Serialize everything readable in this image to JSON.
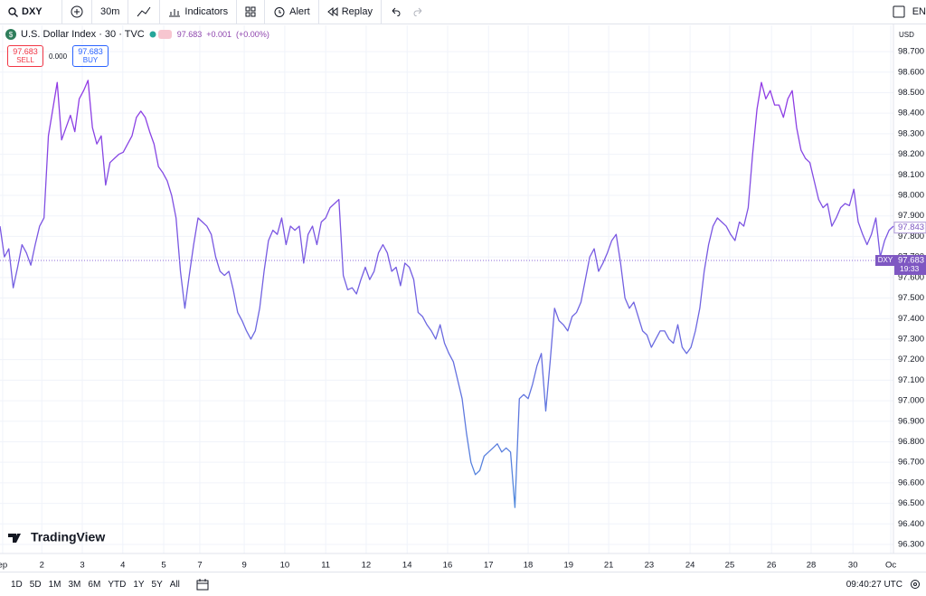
{
  "toolbar": {
    "symbol": "DXY",
    "interval": "30m",
    "indicators": "Indicators",
    "alert": "Alert",
    "replay": "Replay",
    "language": "EN"
  },
  "legend": {
    "title": "U.S. Dollar Index · 30 · TVC",
    "change": "+0.001",
    "change_percent": "(+0.00%)"
  },
  "trade": {
    "sell": "SELL",
    "buy": "BUY",
    "spread": "0.000"
  },
  "chart_data": {
    "type": "line",
    "currency": "USD",
    "symbol_tag": "DXY",
    "countdown": "19:33",
    "last_price": 97.683,
    "marker_price": 97.843,
    "line_colors": [
      "#9a2ee6",
      "#4a93dc"
    ],
    "series": [
      {
        "name": "DXY",
        "values": [
          97.85,
          97.7,
          97.74,
          97.55,
          97.65,
          97.76,
          97.72,
          97.66,
          97.76,
          97.85,
          97.89,
          98.29,
          98.42,
          98.55,
          98.27,
          98.33,
          98.39,
          98.31,
          98.47,
          98.51,
          98.56,
          98.33,
          98.25,
          98.29,
          98.05,
          98.16,
          98.18,
          98.2,
          98.21,
          98.25,
          98.29,
          98.38,
          98.41,
          98.38,
          98.31,
          98.25,
          98.14,
          98.11,
          98.07,
          98.0,
          97.89,
          97.63,
          97.45,
          97.61,
          97.76,
          97.89,
          97.87,
          97.85,
          97.81,
          97.7,
          97.63,
          97.61,
          97.63,
          97.54,
          97.43,
          97.39,
          97.34,
          97.3,
          97.34,
          97.45,
          97.63,
          97.78,
          97.83,
          97.81,
          97.89,
          97.76,
          97.85,
          97.83,
          97.85,
          97.67,
          97.81,
          97.85,
          97.76,
          97.87,
          97.89,
          97.94,
          97.96,
          97.98,
          97.61,
          97.54,
          97.55,
          97.52,
          97.59,
          97.65,
          97.59,
          97.63,
          97.72,
          97.76,
          97.72,
          97.63,
          97.65,
          97.56,
          97.67,
          97.65,
          97.59,
          97.43,
          97.41,
          97.37,
          97.34,
          97.3,
          97.37,
          97.28,
          97.23,
          97.19,
          97.1,
          97.01,
          96.84,
          96.7,
          96.64,
          96.66,
          96.73,
          96.75,
          96.77,
          96.79,
          96.75,
          96.77,
          96.75,
          96.48,
          97.01,
          97.03,
          97.01,
          97.08,
          97.17,
          97.23,
          96.95,
          97.19,
          97.45,
          97.39,
          97.37,
          97.34,
          97.41,
          97.43,
          97.48,
          97.59,
          97.7,
          97.74,
          97.63,
          97.67,
          97.72,
          97.78,
          97.81,
          97.67,
          97.5,
          97.45,
          97.48,
          97.41,
          97.34,
          97.32,
          97.26,
          97.3,
          97.34,
          97.34,
          97.3,
          97.28,
          97.37,
          97.26,
          97.23,
          97.26,
          97.34,
          97.45,
          97.63,
          97.76,
          97.85,
          97.89,
          97.87,
          97.85,
          97.81,
          97.78,
          97.87,
          97.85,
          97.94,
          98.2,
          98.42,
          98.55,
          98.47,
          98.51,
          98.44,
          98.44,
          98.38,
          98.47,
          98.51,
          98.33,
          98.22,
          98.18,
          98.16,
          98.07,
          97.98,
          97.94,
          97.96,
          97.85,
          97.89,
          97.94,
          97.96,
          97.95,
          98.03,
          97.87,
          97.81,
          97.76,
          97.81,
          97.89,
          97.7,
          97.78,
          97.83,
          97.85
        ]
      }
    ],
    "xlim": [
      0,
      203
    ],
    "xticks": [
      {
        "value": 0.6,
        "label": "ep"
      },
      {
        "value": 9.5,
        "label": "2"
      },
      {
        "value": 18.7,
        "label": "3"
      },
      {
        "value": 27.9,
        "label": "4"
      },
      {
        "value": 37.2,
        "label": "5"
      },
      {
        "value": 45.4,
        "label": "7"
      },
      {
        "value": 55.5,
        "label": "9"
      },
      {
        "value": 64.7,
        "label": "10"
      },
      {
        "value": 74,
        "label": "11"
      },
      {
        "value": 83.2,
        "label": "12"
      },
      {
        "value": 92.5,
        "label": "14"
      },
      {
        "value": 101.7,
        "label": "16"
      },
      {
        "value": 111,
        "label": "17"
      },
      {
        "value": 120,
        "label": "18"
      },
      {
        "value": 129.2,
        "label": "19"
      },
      {
        "value": 138.3,
        "label": "21"
      },
      {
        "value": 147.5,
        "label": "23"
      },
      {
        "value": 156.8,
        "label": "24"
      },
      {
        "value": 165.8,
        "label": "25"
      },
      {
        "value": 175.3,
        "label": "26"
      },
      {
        "value": 184.3,
        "label": "28"
      },
      {
        "value": 193.8,
        "label": "30"
      },
      {
        "value": 202.4,
        "label": "Oc"
      }
    ],
    "ylim": [
      96.256,
      98.828
    ],
    "yticks": [
      {
        "value": 98.7,
        "label": "98.700"
      },
      {
        "value": 98.6,
        "label": "98.600"
      },
      {
        "value": 98.5,
        "label": "98.500"
      },
      {
        "value": 98.4,
        "label": "98.400"
      },
      {
        "value": 98.3,
        "label": "98.300"
      },
      {
        "value": 98.2,
        "label": "98.200"
      },
      {
        "value": 98.1,
        "label": "98.100"
      },
      {
        "value": 98.0,
        "label": "98.000"
      },
      {
        "value": 97.9,
        "label": "97.900"
      },
      {
        "value": 97.8,
        "label": "97.800"
      },
      {
        "value": 97.7,
        "label": "97.700"
      },
      {
        "value": 97.6,
        "label": "97.600"
      },
      {
        "value": 97.5,
        "label": "97.500"
      },
      {
        "value": 97.4,
        "label": "97.400"
      },
      {
        "value": 97.3,
        "label": "97.300"
      },
      {
        "value": 97.2,
        "label": "97.200"
      },
      {
        "value": 97.1,
        "label": "97.100"
      },
      {
        "value": 97.0,
        "label": "97.000"
      },
      {
        "value": 96.9,
        "label": "96.900"
      },
      {
        "value": 96.8,
        "label": "96.800"
      },
      {
        "value": 96.7,
        "label": "96.700"
      },
      {
        "value": 96.6,
        "label": "96.600"
      },
      {
        "value": 96.5,
        "label": "96.500"
      },
      {
        "value": 96.4,
        "label": "96.400"
      },
      {
        "value": 96.3,
        "label": "96.300"
      }
    ],
    "grid": true,
    "logo": "TradingView"
  },
  "bottom": {
    "ranges": [
      "1D",
      "5D",
      "1M",
      "3M",
      "6M",
      "YTD",
      "1Y",
      "5Y",
      "All"
    ],
    "clock": "09:40:27 UTC"
  }
}
